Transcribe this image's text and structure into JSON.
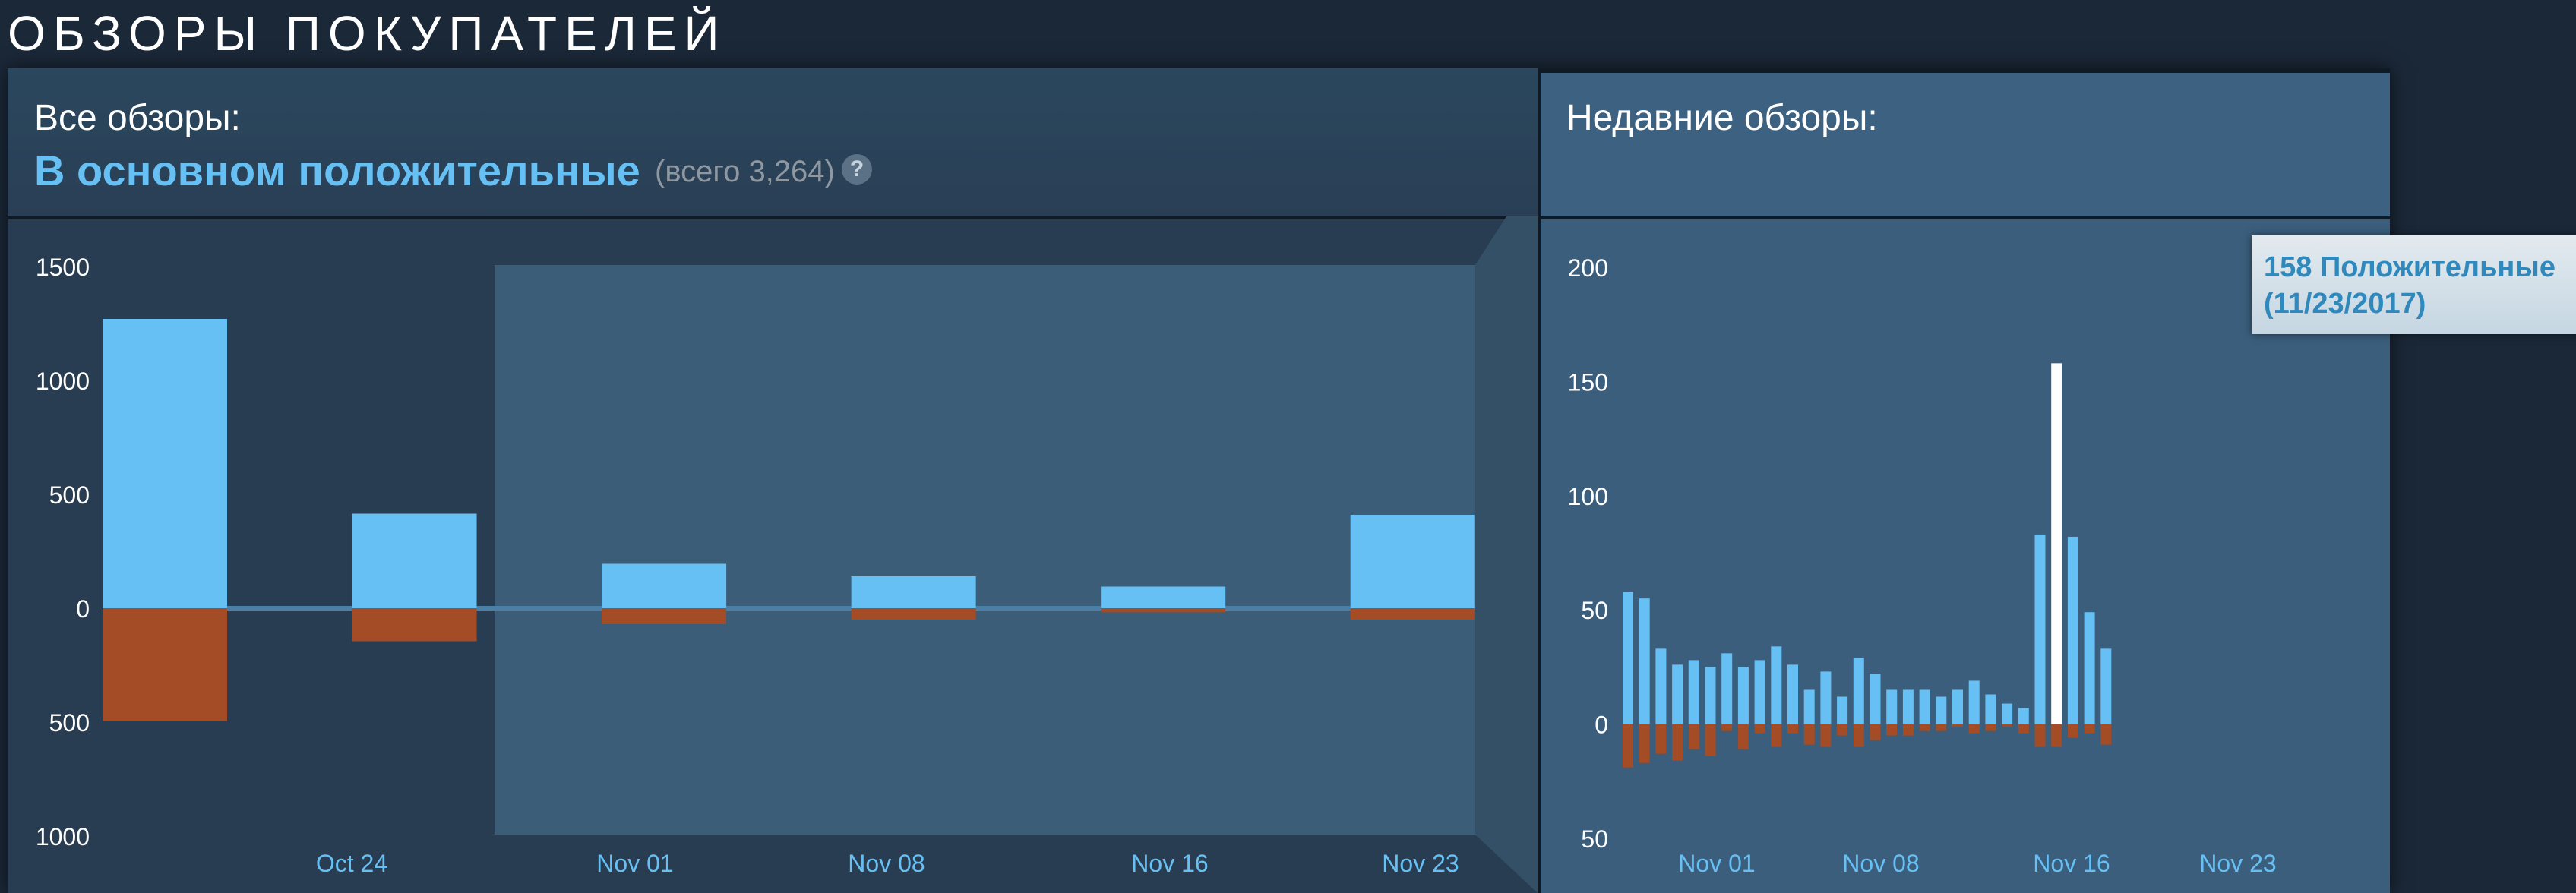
{
  "section_title": "ОБЗОРЫ ПОКУПАТЕЛЕЙ",
  "overall": {
    "label": "Все обзоры:",
    "summary": "В основном положительные",
    "total": "(всего 3,264)",
    "help_icon": "question-mark-icon"
  },
  "recent": {
    "label": "Недавние обзоры:"
  },
  "tooltip": {
    "text": "158 Положительные\n(11/23/2017)"
  },
  "colors": {
    "positive": "#66c0f4",
    "negative": "#a34c25",
    "highlight": "#ffffff",
    "tick_label": "#ffffff",
    "date_label": "#66c0f4"
  },
  "chart_data": [
    {
      "type": "bar",
      "y_ticks": [
        {
          "label": "1500",
          "value": 1500
        },
        {
          "label": "1000",
          "value": 1000
        },
        {
          "label": "500",
          "value": 500
        },
        {
          "label": "0",
          "value": 0
        },
        {
          "label": "500",
          "value": -500
        },
        {
          "label": "1000",
          "value": -1000
        }
      ],
      "ylim": [
        -1000,
        1500
      ],
      "x_tick_labels": [
        "Oct 24",
        "Nov 01",
        "Nov 08",
        "Nov 16",
        "Nov 23"
      ],
      "series": [
        {
          "values": [
            1270,
            415,
            195,
            140,
            95,
            410
          ]
        },
        {
          "values": [
            -495,
            -145,
            -70,
            -50,
            -18,
            -50
          ]
        }
      ]
    },
    {
      "type": "bar",
      "y_ticks": [
        {
          "label": "200",
          "value": 200
        },
        {
          "label": "150",
          "value": 150
        },
        {
          "label": "100",
          "value": 100
        },
        {
          "label": "50",
          "value": 50
        },
        {
          "label": "0",
          "value": 0
        },
        {
          "label": "50",
          "value": -50
        }
      ],
      "ylim": [
        -50,
        200
      ],
      "x_tick_labels": [
        "Nov 01",
        "Nov 08",
        "Nov 16",
        "Nov 23"
      ],
      "highlighted": {
        "date": "11/23/2017",
        "value": 158
      },
      "series": [
        {
          "values": [
            58,
            55,
            33,
            26,
            28,
            25,
            31,
            25,
            28,
            34,
            26,
            15,
            23,
            12,
            29,
            22,
            15,
            15,
            15,
            12,
            15,
            19,
            13,
            9,
            7,
            83,
            158,
            82,
            49,
            33
          ]
        },
        {
          "values": [
            -19,
            -17,
            -13,
            -16,
            -11,
            -14,
            -3,
            -11,
            -4,
            -10,
            -4,
            -9,
            -10,
            -5,
            -10,
            -7,
            -5,
            -5,
            -3,
            -3,
            -1,
            -4,
            -3,
            -1,
            -4,
            -10,
            -10,
            -6,
            -4,
            -9
          ]
        }
      ]
    }
  ]
}
